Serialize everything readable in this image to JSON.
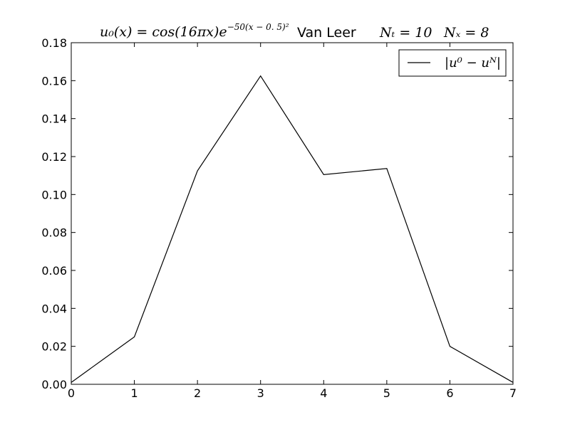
{
  "chart_data": {
    "type": "line",
    "title": {
      "formula": "u₀(x) = cos(16πx)e",
      "formula_exponent": "−50(x − 0. 5)²",
      "method": "Van Leer",
      "nt": "Nₜ = 10",
      "nx": "Nₓ = 8"
    },
    "xlabel": "",
    "ylabel": "",
    "xlim": [
      0,
      7
    ],
    "ylim": [
      0,
      0.18
    ],
    "x_ticks": [
      "0",
      "1",
      "2",
      "3",
      "4",
      "5",
      "6",
      "7"
    ],
    "y_ticks": [
      "0.00",
      "0.02",
      "0.04",
      "0.06",
      "0.08",
      "0.10",
      "0.12",
      "0.14",
      "0.16",
      "0.18"
    ],
    "grid": false,
    "legend_position": "top-right",
    "series": [
      {
        "name": "|u⁰ − uᴺ|",
        "color": "#000000",
        "x": [
          0,
          1,
          2,
          3,
          4,
          5,
          6,
          7
        ],
        "y": [
          0.001,
          0.025,
          0.1125,
          0.1625,
          0.1105,
          0.1137,
          0.02,
          0.001
        ]
      }
    ]
  }
}
